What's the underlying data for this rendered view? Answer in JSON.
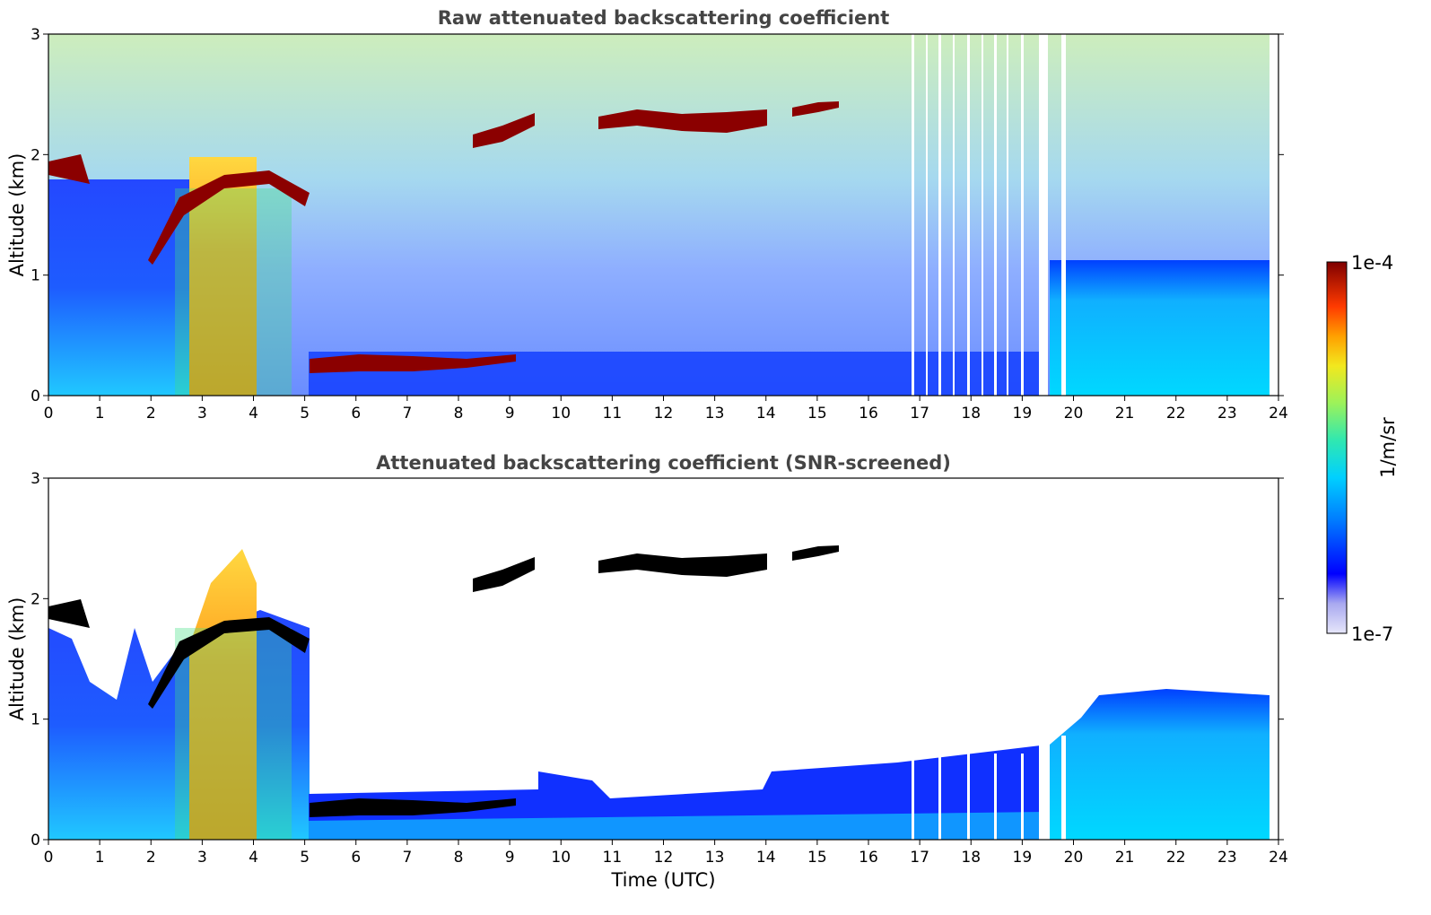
{
  "chart_data": [
    {
      "type": "heatmap",
      "title": "Raw attenuated backscattering coefficient",
      "xlabel": "",
      "ylabel": "Altitude (km)",
      "xlim": [
        0,
        24
      ],
      "ylim": [
        0,
        3
      ],
      "xticks": [
        "0",
        "1",
        "2",
        "3",
        "4",
        "5",
        "6",
        "7",
        "8",
        "9",
        "10",
        "11",
        "12",
        "13",
        "14",
        "15",
        "16",
        "17",
        "18",
        "19",
        "20",
        "21",
        "22",
        "23",
        "24"
      ],
      "yticks": [
        "0",
        "1",
        "2",
        "3"
      ],
      "features": [
        {
          "kind": "boundary-layer",
          "t_start": 0,
          "t_end": 5.0,
          "alt_top": 1.8,
          "level": "medium"
        },
        {
          "kind": "aerosol-plume",
          "t_start": 2.75,
          "t_end": 4.3,
          "alt_top": 2.0,
          "level": "high"
        },
        {
          "kind": "cloud-layer",
          "t_start": 0,
          "t_end": 0.8,
          "alt": 1.85,
          "level": "saturated"
        },
        {
          "kind": "cloud-layer",
          "t_start": 2.0,
          "t_end": 5.1,
          "alt_from": 1.1,
          "alt_to": 1.75,
          "level": "saturated"
        },
        {
          "kind": "cloud-layer",
          "t_start": 5.1,
          "t_end": 9.1,
          "alt": 0.26,
          "level": "saturated"
        },
        {
          "kind": "cloud-layer",
          "t_start": 8.3,
          "t_end": 9.5,
          "alt": 2.2,
          "level": "saturated"
        },
        {
          "kind": "cloud-layer",
          "t_start": 10.7,
          "t_end": 14.0,
          "alt": 2.27,
          "level": "saturated"
        },
        {
          "kind": "cloud-layer",
          "t_start": 14.5,
          "t_end": 15.4,
          "alt": 2.38,
          "level": "saturated"
        },
        {
          "kind": "boundary-layer",
          "t_start": 5.1,
          "t_end": 19.5,
          "alt_top": 0.35,
          "level": "low"
        },
        {
          "kind": "boundary-layer",
          "t_start": 19.5,
          "t_end": 23.8,
          "alt_top": 1.15,
          "level": "low-medium"
        },
        {
          "kind": "data-gaps",
          "t_start": 16.8,
          "t_end": 19.9,
          "note": "vertical missing profiles"
        }
      ]
    },
    {
      "type": "heatmap",
      "title": "Attenuated backscattering coefficient (SNR-screened)",
      "xlabel": "Time (UTC)",
      "ylabel": "Altitude (km)",
      "xlim": [
        0,
        24
      ],
      "ylim": [
        0,
        3
      ],
      "xticks": [
        "0",
        "1",
        "2",
        "3",
        "4",
        "5",
        "6",
        "7",
        "8",
        "9",
        "10",
        "11",
        "12",
        "13",
        "14",
        "15",
        "16",
        "17",
        "18",
        "19",
        "20",
        "21",
        "22",
        "23",
        "24"
      ],
      "yticks": [
        "0",
        "1",
        "2",
        "3"
      ],
      "features": [
        {
          "kind": "boundary-layer",
          "t_start": 0,
          "t_end": 5.0,
          "alt_top": 1.8,
          "level": "medium"
        },
        {
          "kind": "aerosol-plume",
          "t_start": 2.75,
          "t_end": 4.3,
          "alt_top": 2.4,
          "level": "high"
        },
        {
          "kind": "cloud-layer",
          "t_start": 5.1,
          "t_end": 9.1,
          "alt": 0.26,
          "level": "saturated-black"
        },
        {
          "kind": "cloud-layer",
          "t_start": 8.3,
          "t_end": 9.5,
          "alt": 2.2,
          "level": "saturated-black"
        },
        {
          "kind": "cloud-layer",
          "t_start": 10.7,
          "t_end": 14.0,
          "alt": 2.27,
          "level": "saturated-black"
        },
        {
          "kind": "cloud-layer",
          "t_start": 14.5,
          "t_end": 15.4,
          "alt": 2.38,
          "level": "saturated-black"
        },
        {
          "kind": "boundary-layer",
          "t_start": 5.1,
          "t_end": 20.0,
          "alt_top": 0.6,
          "level": "low"
        },
        {
          "kind": "boundary-layer",
          "t_start": 20.0,
          "t_end": 23.8,
          "alt_top": 1.2,
          "level": "low-medium"
        }
      ]
    }
  ],
  "colorbar": {
    "label": "1/m/sr",
    "max_label": "1e-4",
    "min_label": "1e-7",
    "colors": [
      "#e6e6fa",
      "#b3b3f2",
      "#7f7fea",
      "#0000ff",
      "#0066ff",
      "#00ccff",
      "#33e0c0",
      "#7fef7f",
      "#d6f22a",
      "#ffd200",
      "#ff8c00",
      "#ff3200",
      "#c80000",
      "#7f0000"
    ]
  }
}
